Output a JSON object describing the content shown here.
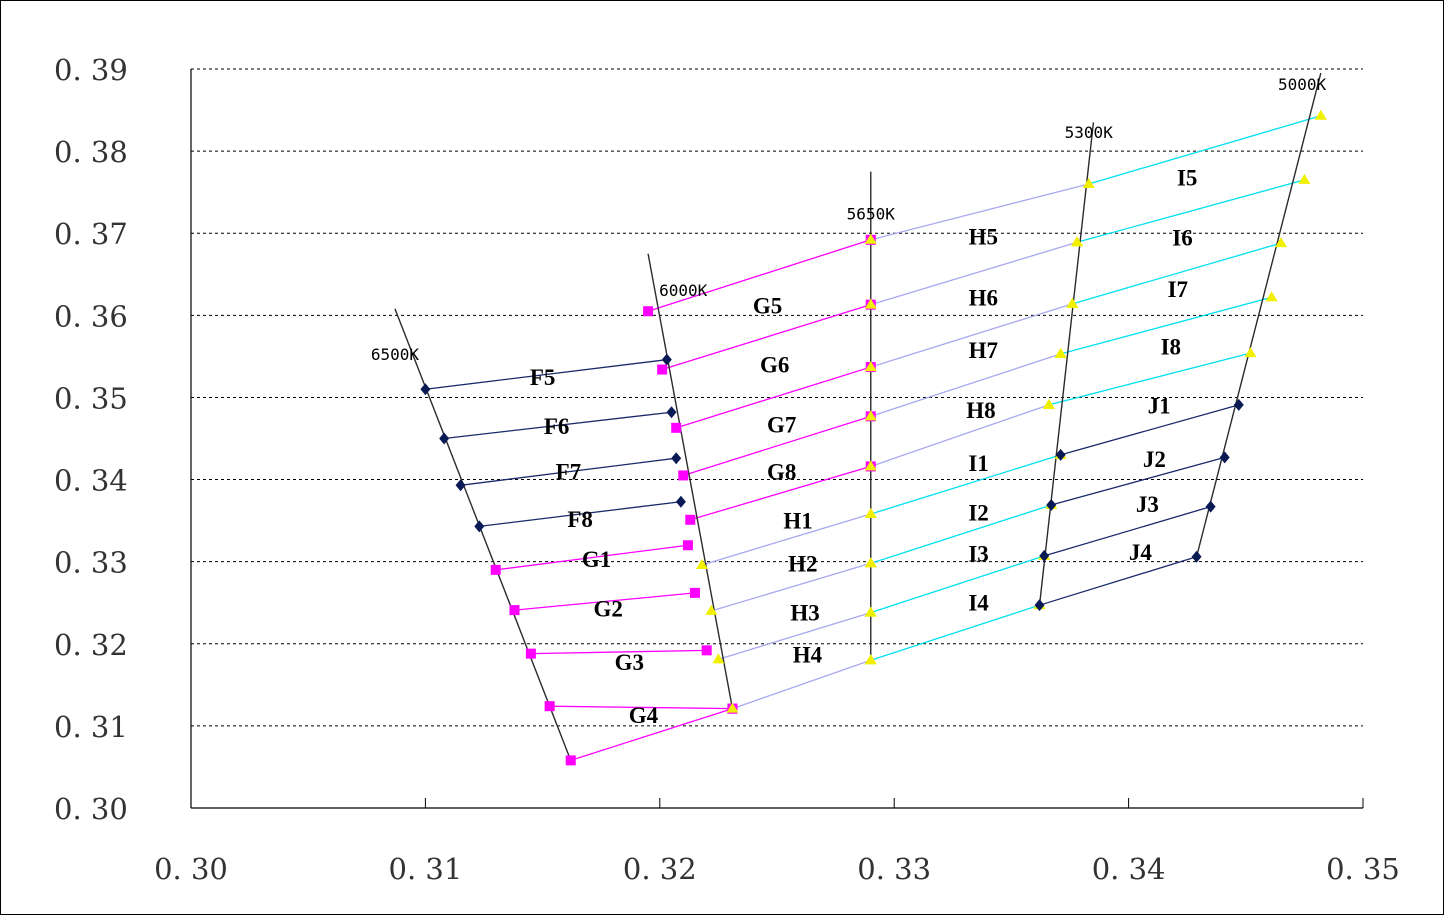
{
  "chart_data": {
    "type": "line",
    "title": "",
    "xlabel": "",
    "ylabel": "",
    "xlim": [
      0.3,
      0.35
    ],
    "ylim": [
      0.3,
      0.39
    ],
    "x_ticks": [
      "0. 30",
      "0. 31",
      "0. 32",
      "0. 33",
      "0. 34",
      "0. 35"
    ],
    "y_ticks": [
      "0. 30",
      "0. 31",
      "0. 32",
      "0. 33",
      "0. 34",
      "0. 35",
      "0. 36",
      "0. 37",
      "0. 38",
      "0. 39"
    ],
    "grid": "horizontal-dashed",
    "colors": {
      "F": "#1a2a6c",
      "G": "#ff00ff",
      "H": "#a8a8f0",
      "I": "#00e0f0",
      "J": "#1a2a6c",
      "boundary": "#2b2b2b",
      "marker_dark": "#0a1a55",
      "marker_magenta": "#ff00ff",
      "marker_yellow": "#f0f000"
    },
    "cct_lines": [
      {
        "label": "6500K",
        "from": [
          0.3087,
          0.3608
        ],
        "to": [
          0.3162,
          0.3058
        ]
      },
      {
        "label": "6000K",
        "from": [
          0.3195,
          0.3675
        ],
        "to": [
          0.3231,
          0.3121
        ]
      },
      {
        "label": "5650K",
        "from": [
          0.329,
          0.3775
        ],
        "to": [
          0.329,
          0.318
        ]
      },
      {
        "label": "5300K",
        "from": [
          0.3385,
          0.3835
        ],
        "to": [
          0.3362,
          0.3247
        ]
      },
      {
        "label": "5000K",
        "from": [
          0.3482,
          0.3895
        ],
        "to": [
          0.3429,
          0.3306
        ]
      }
    ],
    "bin_lines": [
      {
        "group": "F",
        "points": [
          [
            0.31,
            0.351
          ],
          [
            0.3203,
            0.3546
          ]
        ]
      },
      {
        "group": "F",
        "points": [
          [
            0.3108,
            0.345
          ],
          [
            0.3205,
            0.3482
          ]
        ]
      },
      {
        "group": "F",
        "points": [
          [
            0.3115,
            0.3393
          ],
          [
            0.3207,
            0.3426
          ]
        ]
      },
      {
        "group": "F",
        "points": [
          [
            0.3123,
            0.3343
          ],
          [
            0.3209,
            0.3373
          ]
        ]
      },
      {
        "group": "G",
        "points": [
          [
            0.313,
            0.329
          ],
          [
            0.3212,
            0.332
          ]
        ]
      },
      {
        "group": "G",
        "points": [
          [
            0.3138,
            0.3241
          ],
          [
            0.3215,
            0.3262
          ]
        ]
      },
      {
        "group": "G",
        "points": [
          [
            0.3145,
            0.3188
          ],
          [
            0.322,
            0.3192
          ]
        ]
      },
      {
        "group": "G",
        "points": [
          [
            0.3153,
            0.3124
          ],
          [
            0.3231,
            0.3121
          ]
        ]
      },
      {
        "group": "G",
        "points": [
          [
            0.3162,
            0.3058
          ],
          [
            0.3231,
            0.3121
          ]
        ]
      },
      {
        "group": "G",
        "points": [
          [
            0.3195,
            0.3605
          ],
          [
            0.329,
            0.3692
          ]
        ]
      },
      {
        "group": "G",
        "points": [
          [
            0.3201,
            0.3534
          ],
          [
            0.329,
            0.3613
          ]
        ]
      },
      {
        "group": "G",
        "points": [
          [
            0.3207,
            0.3463
          ],
          [
            0.329,
            0.3537
          ]
        ]
      },
      {
        "group": "G",
        "points": [
          [
            0.321,
            0.3405
          ],
          [
            0.329,
            0.3477
          ]
        ]
      },
      {
        "group": "G",
        "points": [
          [
            0.3213,
            0.3351
          ],
          [
            0.329,
            0.3416
          ]
        ]
      },
      {
        "group": "H",
        "points": [
          [
            0.329,
            0.3692
          ],
          [
            0.3383,
            0.376
          ]
        ]
      },
      {
        "group": "H",
        "points": [
          [
            0.329,
            0.3613
          ],
          [
            0.3378,
            0.3689
          ]
        ]
      },
      {
        "group": "H",
        "points": [
          [
            0.329,
            0.3537
          ],
          [
            0.3376,
            0.3614
          ]
        ]
      },
      {
        "group": "H",
        "points": [
          [
            0.329,
            0.3477
          ],
          [
            0.3371,
            0.3553
          ]
        ]
      },
      {
        "group": "H",
        "points": [
          [
            0.329,
            0.3416
          ],
          [
            0.3366,
            0.3491
          ]
        ]
      },
      {
        "group": "H",
        "points": [
          [
            0.3218,
            0.3296
          ],
          [
            0.329,
            0.3358
          ]
        ]
      },
      {
        "group": "H",
        "points": [
          [
            0.3222,
            0.324
          ],
          [
            0.329,
            0.3298
          ]
        ]
      },
      {
        "group": "H",
        "points": [
          [
            0.3225,
            0.3181
          ],
          [
            0.329,
            0.3238
          ]
        ]
      },
      {
        "group": "H",
        "points": [
          [
            0.3231,
            0.3121
          ],
          [
            0.329,
            0.318
          ]
        ]
      },
      {
        "group": "I",
        "points": [
          [
            0.329,
            0.3358
          ],
          [
            0.3371,
            0.343
          ]
        ]
      },
      {
        "group": "I",
        "points": [
          [
            0.329,
            0.3298
          ],
          [
            0.3367,
            0.3369
          ]
        ]
      },
      {
        "group": "I",
        "points": [
          [
            0.329,
            0.3238
          ],
          [
            0.3364,
            0.3307
          ]
        ]
      },
      {
        "group": "I",
        "points": [
          [
            0.329,
            0.318
          ],
          [
            0.3362,
            0.3247
          ]
        ]
      },
      {
        "group": "I",
        "points": [
          [
            0.3383,
            0.376
          ],
          [
            0.3482,
            0.3843
          ]
        ]
      },
      {
        "group": "I",
        "points": [
          [
            0.3378,
            0.3689
          ],
          [
            0.3475,
            0.3765
          ]
        ]
      },
      {
        "group": "I",
        "points": [
          [
            0.3376,
            0.3614
          ],
          [
            0.3465,
            0.3688
          ]
        ]
      },
      {
        "group": "I",
        "points": [
          [
            0.3371,
            0.3553
          ],
          [
            0.3461,
            0.3622
          ]
        ]
      },
      {
        "group": "I",
        "points": [
          [
            0.3366,
            0.3491
          ],
          [
            0.3452,
            0.3554
          ]
        ]
      },
      {
        "group": "J",
        "points": [
          [
            0.3371,
            0.343
          ],
          [
            0.3447,
            0.3491
          ]
        ]
      },
      {
        "group": "J",
        "points": [
          [
            0.3367,
            0.3369
          ],
          [
            0.3441,
            0.3427
          ]
        ]
      },
      {
        "group": "J",
        "points": [
          [
            0.3364,
            0.3307
          ],
          [
            0.3435,
            0.3367
          ]
        ]
      },
      {
        "group": "J",
        "points": [
          [
            0.3362,
            0.3247
          ],
          [
            0.3429,
            0.3306
          ]
        ]
      }
    ],
    "bin_labels": [
      {
        "text": "F5",
        "at": [
          0.315,
          0.3525
        ]
      },
      {
        "text": "F6",
        "at": [
          0.3156,
          0.3465
        ]
      },
      {
        "text": "F7",
        "at": [
          0.3161,
          0.341
        ]
      },
      {
        "text": "F8",
        "at": [
          0.3166,
          0.3352
        ]
      },
      {
        "text": "G1",
        "at": [
          0.3173,
          0.3303
        ]
      },
      {
        "text": "G2",
        "at": [
          0.3178,
          0.3243
        ]
      },
      {
        "text": "G3",
        "at": [
          0.3187,
          0.3178
        ]
      },
      {
        "text": "G4",
        "at": [
          0.3193,
          0.3113
        ]
      },
      {
        "text": "G5",
        "at": [
          0.3246,
          0.3612
        ]
      },
      {
        "text": "G6",
        "at": [
          0.3249,
          0.354
        ]
      },
      {
        "text": "G7",
        "at": [
          0.3252,
          0.3467
        ]
      },
      {
        "text": "G8",
        "at": [
          0.3252,
          0.341
        ]
      },
      {
        "text": "H1",
        "at": [
          0.3259,
          0.335
        ]
      },
      {
        "text": "H2",
        "at": [
          0.3261,
          0.3298
        ]
      },
      {
        "text": "H3",
        "at": [
          0.3262,
          0.3238
        ]
      },
      {
        "text": "H4",
        "at": [
          0.3263,
          0.3187
        ]
      },
      {
        "text": "H5",
        "at": [
          0.3338,
          0.3696
        ]
      },
      {
        "text": "H6",
        "at": [
          0.3338,
          0.3622
        ]
      },
      {
        "text": "H7",
        "at": [
          0.3338,
          0.3558
        ]
      },
      {
        "text": "H8",
        "at": [
          0.3337,
          0.3485
        ]
      },
      {
        "text": "I1",
        "at": [
          0.3336,
          0.342
        ]
      },
      {
        "text": "I2",
        "at": [
          0.3336,
          0.336
        ]
      },
      {
        "text": "I3",
        "at": [
          0.3336,
          0.331
        ]
      },
      {
        "text": "I4",
        "at": [
          0.3336,
          0.325
        ]
      },
      {
        "text": "I5",
        "at": [
          0.3425,
          0.3768
        ]
      },
      {
        "text": "I6",
        "at": [
          0.3423,
          0.3695
        ]
      },
      {
        "text": "I7",
        "at": [
          0.3421,
          0.3632
        ]
      },
      {
        "text": "I8",
        "at": [
          0.3418,
          0.3562
        ]
      },
      {
        "text": "J1",
        "at": [
          0.3413,
          0.349
        ]
      },
      {
        "text": "J2",
        "at": [
          0.3411,
          0.3425
        ]
      },
      {
        "text": "J3",
        "at": [
          0.3408,
          0.337
        ]
      },
      {
        "text": "J4",
        "at": [
          0.3405,
          0.3312
        ]
      }
    ],
    "cct_labels": [
      {
        "text": "6500K",
        "at": [
          0.3087,
          0.3553
        ]
      },
      {
        "text": "6000K",
        "at": [
          0.321,
          0.3631
        ]
      },
      {
        "text": "5650K",
        "at": [
          0.329,
          0.3724
        ]
      },
      {
        "text": "5300K",
        "at": [
          0.3383,
          0.3823
        ]
      },
      {
        "text": "5000K",
        "at": [
          0.3474,
          0.3882
        ]
      }
    ]
  }
}
